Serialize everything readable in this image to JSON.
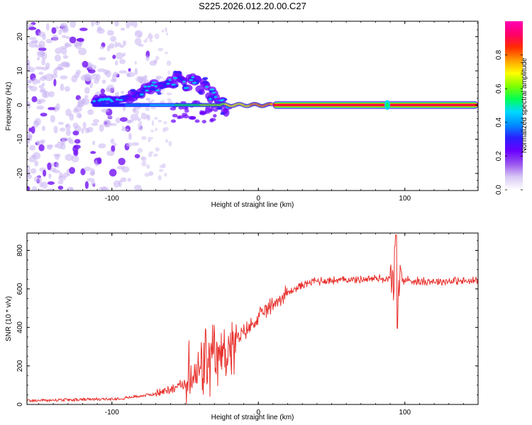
{
  "title": "S225.2026.012.20.00.C27",
  "chart_data": [
    {
      "type": "heatmap",
      "name": "spectrogram",
      "xlabel": "Height of straight line (km)",
      "ylabel": "Frequency (Hz)",
      "xlim": [
        -158,
        150
      ],
      "ylim": [
        -25,
        24.5
      ],
      "xticks": [
        -100,
        0,
        100
      ],
      "xtick_labels": [
        "-100",
        "0",
        "100"
      ],
      "yticks": [
        -20,
        -10,
        0,
        10,
        20
      ],
      "ytick_labels": [
        "-20",
        "-10",
        "0",
        "10",
        "20"
      ],
      "description_points": {
        "carrier_frequency_hz": 0,
        "carrier_start_km": -112,
        "carrier_end_km": 150,
        "turbulent_region_km": [
          -70,
          -20
        ],
        "noise_region_km": [
          -158,
          -80
        ],
        "spike_km": 88
      },
      "colorbar": {
        "label": "Normalized spectral amplitude",
        "ticks": [
          0.0,
          0.2,
          0.4,
          0.6,
          0.8
        ],
        "tick_labels": [
          "0.0",
          "0.2",
          "0.4",
          "0.6",
          "0.8"
        ],
        "range": [
          0,
          1
        ],
        "colormap": [
          "#ffffff",
          "#d8c8f5",
          "#9a55ee",
          "#6a00ff",
          "#2a1fff",
          "#008cff",
          "#00d8ff",
          "#00ff55",
          "#7fff00",
          "#ffff00",
          "#ff9b00",
          "#ff2a00",
          "#ff006a",
          "#ff00b4"
        ]
      }
    },
    {
      "type": "line",
      "name": "snr",
      "xlabel": "Height of straight line (km)",
      "ylabel": "SNR (10 * v/v)",
      "xlim": [
        -158,
        150
      ],
      "ylim": [
        0,
        890
      ],
      "xticks": [
        -100,
        0,
        100
      ],
      "xtick_labels": [
        "-100",
        "0",
        "100"
      ],
      "yticks": [
        0,
        200,
        400,
        600,
        800
      ],
      "ytick_labels": [
        "0",
        "200",
        "400",
        "600",
        "800"
      ],
      "line_color": "#e8322e",
      "series": [
        {
          "name": "SNR",
          "x": [
            -158,
            -140,
            -120,
            -100,
            -90,
            -80,
            -70,
            -60,
            -50,
            -45,
            -40,
            -35,
            -30,
            -25,
            -20,
            -15,
            -10,
            -5,
            0,
            5,
            10,
            15,
            20,
            25,
            30,
            35,
            40,
            50,
            60,
            70,
            80,
            85,
            90,
            93,
            95,
            100,
            110,
            120,
            130,
            140,
            150
          ],
          "values": [
            20,
            22,
            25,
            28,
            35,
            45,
            55,
            80,
            110,
            140,
            170,
            200,
            230,
            260,
            290,
            330,
            370,
            410,
            450,
            490,
            520,
            550,
            580,
            600,
            620,
            635,
            640,
            645,
            648,
            650,
            655,
            652,
            650,
            630,
            640,
            645,
            640,
            640,
            640,
            640,
            640
          ]
        }
      ],
      "annotations": {
        "spike_x_km": 94,
        "spike_max": 880,
        "spike_min": 395,
        "oscillation_region_km": [
          -50,
          -15
        ]
      }
    }
  ]
}
